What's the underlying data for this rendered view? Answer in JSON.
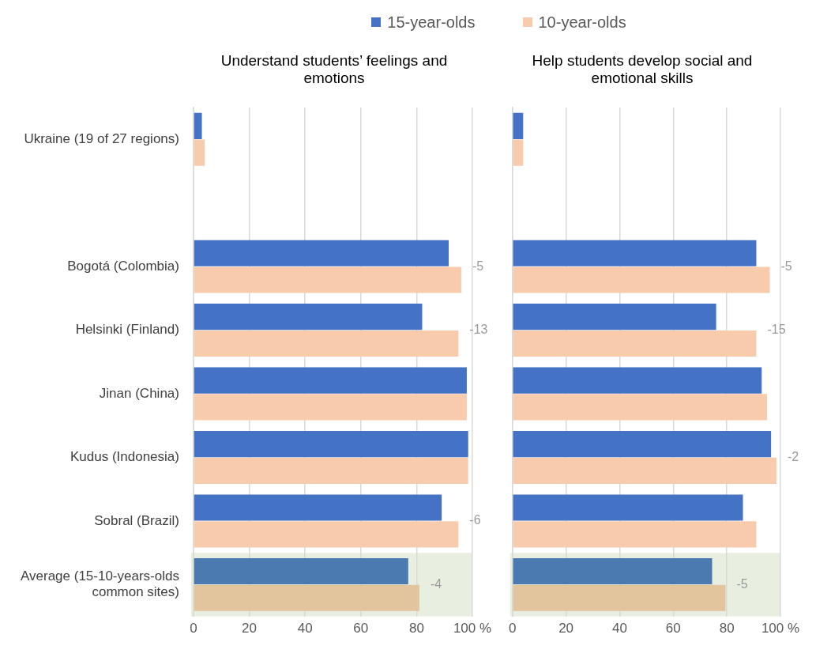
{
  "chart_data": [
    {
      "type": "bar",
      "orientation": "horizontal",
      "title": "Understand students’ feelings and emotions",
      "legend": "top",
      "grid": "x",
      "categories": [
        "Ukraine (19 of 27 regions)",
        null,
        "Bogotá (Colombia)",
        "Helsinki (Finland)",
        "Jinan (China)",
        "Kudus (Indonesia)",
        "Sobral (Brazil)",
        "Average (15-10-years-olds common sites)"
      ],
      "series": [
        {
          "name": "15-year-olds",
          "color": "#4472c4",
          "colors": [
            "#4472c4",
            "#4472c4",
            "#4472c4",
            "#4472c4",
            "#4472c4",
            "#4472c4",
            "#4472c4",
            "#4a7ab0"
          ],
          "values": [
            3,
            null,
            91.5,
            82,
            98,
            98.5,
            89,
            77
          ]
        },
        {
          "name": "10-year-olds",
          "color": "#f8cbad",
          "colors": [
            "#f8cbad",
            "#f8cbad",
            "#f8cbad",
            "#f8cbad",
            "#f8cbad",
            "#f8cbad",
            "#f8cbad",
            "#e2c59d"
          ],
          "values": [
            4,
            null,
            96,
            95,
            98,
            98.5,
            95,
            81
          ]
        }
      ],
      "xlim": [
        0,
        100
      ],
      "xticks": [
        0,
        20,
        40,
        60,
        80,
        {
          "value": 100,
          "label": "100 %"
        }
      ],
      "bands": [
        {
          "axis": "y",
          "from": "Average (15-10-years-olds common sites)",
          "to": "Average (15-10-years-olds common sites)",
          "color": "#e8efe0"
        }
      ],
      "annotations": [
        {
          "text": "-5",
          "x": 96,
          "y": "Bogotá (Colombia)"
        },
        {
          "text": "-13",
          "x": 95,
          "y": "Helsinki (Finland)"
        },
        {
          "text": "-6",
          "x": 95,
          "y": "Sobral (Brazil)"
        },
        {
          "text": "-4",
          "x": 81,
          "y": "Average (15-10-years-olds common sites)"
        }
      ]
    },
    {
      "type": "bar",
      "orientation": "horizontal",
      "title": "Help students develop social and emotional skills",
      "grid": "x",
      "tick_labels": "x",
      "categories": [
        "Ukraine (19 of 27 regions)",
        null,
        "Bogotá (Colombia)",
        "Helsinki (Finland)",
        "Jinan (China)",
        "Kudus (Indonesia)",
        "Sobral (Brazil)",
        "Average (15-10-years-olds common sites)"
      ],
      "series": [
        {
          "colors": [
            "#4472c4",
            "#4472c4",
            "#4472c4",
            "#4472c4",
            "#4472c4",
            "#4472c4",
            "#4472c4",
            "#4a7ab0"
          ],
          "values": [
            4,
            null,
            91,
            76,
            93,
            96.5,
            86,
            74.5
          ]
        },
        {
          "colors": [
            "#f8cbad",
            "#f8cbad",
            "#f8cbad",
            "#f8cbad",
            "#f8cbad",
            "#f8cbad",
            "#f8cbad",
            "#e2c59d"
          ],
          "values": [
            4,
            null,
            96,
            91,
            95,
            98.5,
            91,
            79.5
          ]
        }
      ],
      "xlim": [
        0,
        100
      ],
      "xticks": [
        0,
        20,
        40,
        60,
        80,
        {
          "value": 100,
          "label": "100 %"
        }
      ],
      "bands": [
        {
          "axis": "y",
          "from": "Average (15-10-years-olds common sites)",
          "to": "Average (15-10-years-olds common sites)",
          "color": "#e8efe0"
        }
      ],
      "annotations": [
        {
          "text": "-5",
          "x": 96,
          "y": "Bogotá (Colombia)"
        },
        {
          "text": "-15",
          "x": 91,
          "y": "Helsinki (Finland)"
        },
        {
          "text": "-2",
          "x": 98.5,
          "y": "Kudus (Indonesia)"
        },
        {
          "text": "-5",
          "x": 79.5,
          "y": "Average (15-10-years-olds common sites)"
        }
      ]
    }
  ]
}
